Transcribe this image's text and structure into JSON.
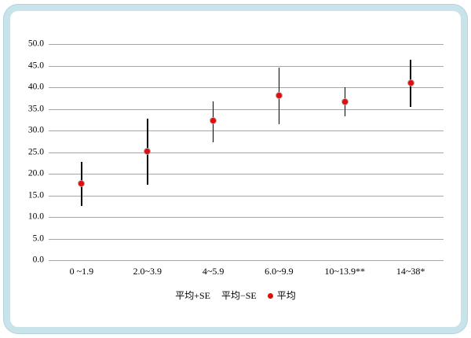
{
  "frame": {
    "border_color": "#c8e3e9",
    "border_edge_color": "#b0d3dc"
  },
  "chart_data": {
    "type": "scatter",
    "subtype": "mean-with-error-bars",
    "title": "",
    "xlabel": "",
    "ylabel": "",
    "categories": [
      "0 ~1.9",
      "2.0~3.9",
      "4~5.9",
      "6.0~9.9",
      "10~13.9**",
      "14~38*"
    ],
    "series": [
      {
        "name": "平均+SE",
        "role": "upper",
        "values": [
          22.8,
          32.8,
          36.8,
          44.5,
          40.0,
          46.4
        ]
      },
      {
        "name": "平均−SE",
        "role": "lower",
        "values": [
          12.6,
          17.5,
          27.3,
          31.5,
          33.2,
          35.5
        ]
      },
      {
        "name": "平均",
        "role": "mean",
        "values": [
          17.7,
          25.2,
          32.2,
          38.1,
          36.6,
          41.0
        ]
      }
    ],
    "ylim": [
      0,
      50
    ],
    "ytick_step": 5,
    "ytick_labels": [
      "0.0",
      "5.0",
      "10.0",
      "15.0",
      "20.0",
      "25.0",
      "30.0",
      "35.0",
      "40.0",
      "45.0",
      "50.0"
    ],
    "grid": true,
    "legend": {
      "position": "bottom",
      "items": [
        {
          "label": "平均+SE",
          "marker": "none"
        },
        {
          "label": "平均−SE",
          "marker": "none"
        },
        {
          "label": "平均",
          "marker": "dot",
          "marker_color": "#e00d0d"
        }
      ]
    },
    "colors": {
      "mean_dot": "#e00d0d",
      "mean_dot_edge": "#a8a8a8",
      "error_bar": "#000000",
      "gridline": "#a6a6a6",
      "text": "#000000"
    }
  }
}
